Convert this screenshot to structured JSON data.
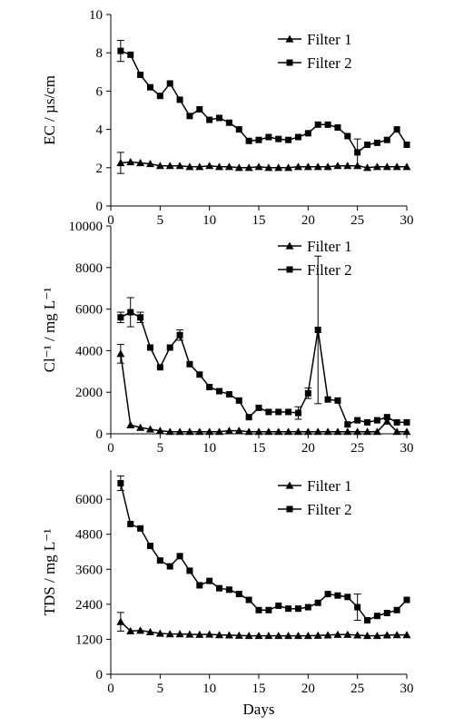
{
  "chart_data": [
    {
      "type": "line",
      "ylabel": "EC / µs/cm",
      "xlabel": "",
      "xlim": [
        0,
        30
      ],
      "ylim": [
        0,
        10
      ],
      "xticks": [
        0,
        5,
        10,
        15,
        20,
        25,
        30
      ],
      "yticks": [
        0,
        2,
        4,
        6,
        8,
        10
      ],
      "xtick_labels": [
        "0",
        "5",
        "10",
        "15",
        "20",
        "25",
        "30"
      ],
      "ytick_labels": [
        "0",
        "2",
        "4",
        "6",
        "8",
        "10"
      ],
      "legend_position": "top-right",
      "series": [
        {
          "name": "Filter 1",
          "marker": "triangle",
          "x": [
            1,
            2,
            3,
            4,
            5,
            6,
            7,
            8,
            9,
            10,
            11,
            12,
            13,
            14,
            15,
            16,
            17,
            18,
            19,
            20,
            21,
            22,
            23,
            24,
            25,
            26,
            27,
            28,
            29,
            30
          ],
          "y": [
            2.25,
            2.3,
            2.25,
            2.2,
            2.1,
            2.1,
            2.1,
            2.05,
            2.05,
            2.1,
            2.05,
            2.05,
            2.0,
            2.0,
            2.05,
            2.0,
            2.0,
            2.0,
            2.05,
            2.05,
            2.05,
            2.05,
            2.1,
            2.1,
            2.1,
            2.0,
            2.05,
            2.05,
            2.05,
            2.05
          ],
          "errors": [
            {
              "x": 1,
              "y": 2.25,
              "e": 0.55
            }
          ]
        },
        {
          "name": "Filter 2",
          "marker": "square",
          "x": [
            1,
            2,
            3,
            4,
            5,
            6,
            7,
            8,
            9,
            10,
            11,
            12,
            13,
            14,
            15,
            16,
            17,
            18,
            19,
            20,
            21,
            22,
            23,
            24,
            25,
            26,
            27,
            28,
            29,
            30
          ],
          "y": [
            8.1,
            7.9,
            6.85,
            6.2,
            5.75,
            6.4,
            5.55,
            4.7,
            5.05,
            4.5,
            4.6,
            4.35,
            4.0,
            3.4,
            3.45,
            3.6,
            3.5,
            3.45,
            3.6,
            3.8,
            4.25,
            4.25,
            4.1,
            3.65,
            2.8,
            3.2,
            3.3,
            3.45,
            4.0,
            3.2
          ],
          "errors": [
            {
              "x": 1,
              "y": 8.1,
              "e": 0.55
            },
            {
              "x": 25,
              "y": 2.8,
              "e": 0.7
            }
          ]
        }
      ]
    },
    {
      "type": "line",
      "ylabel": "Cl⁻¹ / mg L⁻¹",
      "xlabel": "",
      "xlim": [
        0,
        30
      ],
      "ylim": [
        0,
        10000
      ],
      "xticks": [
        0,
        5,
        10,
        15,
        20,
        25,
        30
      ],
      "yticks": [
        0,
        2000,
        4000,
        6000,
        8000,
        10000
      ],
      "xtick_labels": [
        "0",
        "5",
        "10",
        "15",
        "20",
        "25",
        "30"
      ],
      "ytick_labels": [
        "0",
        "2000",
        "4000",
        "6000",
        "8000",
        "10000"
      ],
      "legend_position": "top-right",
      "series": [
        {
          "name": "Filter 1",
          "marker": "triangle",
          "x": [
            1,
            2,
            3,
            4,
            5,
            6,
            7,
            8,
            9,
            10,
            11,
            12,
            13,
            14,
            15,
            16,
            17,
            18,
            19,
            20,
            21,
            22,
            23,
            24,
            25,
            26,
            27,
            28,
            29,
            30
          ],
          "y": [
            3850,
            420,
            300,
            220,
            150,
            100,
            100,
            100,
            100,
            100,
            100,
            150,
            150,
            100,
            100,
            100,
            100,
            100,
            100,
            100,
            100,
            100,
            100,
            100,
            100,
            100,
            100,
            600,
            100,
            100
          ],
          "errors": [
            {
              "x": 1,
              "y": 3850,
              "e": 450
            }
          ]
        },
        {
          "name": "Filter 2",
          "marker": "square",
          "x": [
            1,
            2,
            3,
            4,
            5,
            6,
            7,
            8,
            9,
            10,
            11,
            12,
            13,
            14,
            15,
            16,
            17,
            18,
            19,
            20,
            21,
            22,
            23,
            24,
            25,
            26,
            27,
            28,
            29,
            30
          ],
          "y": [
            5600,
            5850,
            5600,
            4150,
            3200,
            4150,
            4750,
            3350,
            2850,
            2250,
            2050,
            1900,
            1600,
            800,
            1250,
            1050,
            1050,
            1050,
            1000,
            1950,
            5000,
            1650,
            1600,
            450,
            650,
            550,
            650,
            800,
            550,
            550
          ],
          "errors": [
            {
              "x": 1,
              "y": 5600,
              "e": 250
            },
            {
              "x": 2,
              "y": 5850,
              "e": 700
            },
            {
              "x": 3,
              "y": 5600,
              "e": 250
            },
            {
              "x": 7,
              "y": 4750,
              "e": 250
            },
            {
              "x": 19,
              "y": 1000,
              "e": 300
            },
            {
              "x": 20,
              "y": 1950,
              "e": 250
            },
            {
              "x": 21,
              "y": 5000,
              "e": 3550
            }
          ]
        }
      ]
    },
    {
      "type": "line",
      "ylabel": "TDS / mg L⁻¹",
      "xlabel": "Days",
      "xlim": [
        0,
        30
      ],
      "ylim": [
        0,
        7000
      ],
      "xticks": [
        0,
        5,
        10,
        15,
        20,
        25,
        30
      ],
      "yticks": [
        0,
        1200,
        2400,
        3600,
        4800,
        6000
      ],
      "xtick_labels": [
        "0",
        "5",
        "10",
        "15",
        "20",
        "25",
        "30"
      ],
      "ytick_labels": [
        "0",
        "1200",
        "2400",
        "3600",
        "4800",
        "6000"
      ],
      "legend_position": "top-right",
      "series": [
        {
          "name": "Filter 1",
          "marker": "triangle",
          "x": [
            1,
            2,
            3,
            4,
            5,
            6,
            7,
            8,
            9,
            10,
            11,
            12,
            13,
            14,
            15,
            16,
            17,
            18,
            19,
            20,
            21,
            22,
            23,
            24,
            25,
            26,
            27,
            28,
            29,
            30
          ],
          "y": [
            1800,
            1480,
            1500,
            1450,
            1400,
            1380,
            1380,
            1370,
            1360,
            1370,
            1350,
            1340,
            1330,
            1320,
            1320,
            1320,
            1320,
            1320,
            1320,
            1320,
            1330,
            1340,
            1360,
            1360,
            1340,
            1320,
            1320,
            1340,
            1350,
            1350
          ],
          "errors": [
            {
              "x": 1,
              "y": 1800,
              "e": 320
            }
          ]
        },
        {
          "name": "Filter 2",
          "marker": "square",
          "x": [
            1,
            2,
            3,
            4,
            5,
            6,
            7,
            8,
            9,
            10,
            11,
            12,
            13,
            14,
            15,
            16,
            17,
            18,
            19,
            20,
            21,
            22,
            23,
            24,
            25,
            26,
            27,
            28,
            29,
            30
          ],
          "y": [
            6550,
            5150,
            5000,
            4400,
            3900,
            3700,
            4050,
            3550,
            3050,
            3200,
            2950,
            2900,
            2750,
            2550,
            2200,
            2200,
            2350,
            2250,
            2250,
            2300,
            2450,
            2750,
            2700,
            2650,
            2300,
            1850,
            2000,
            2100,
            2200,
            2550
          ],
          "errors": [
            {
              "x": 1,
              "y": 6550,
              "e": 250
            },
            {
              "x": 25,
              "y": 2300,
              "e": 450
            }
          ]
        }
      ]
    }
  ]
}
